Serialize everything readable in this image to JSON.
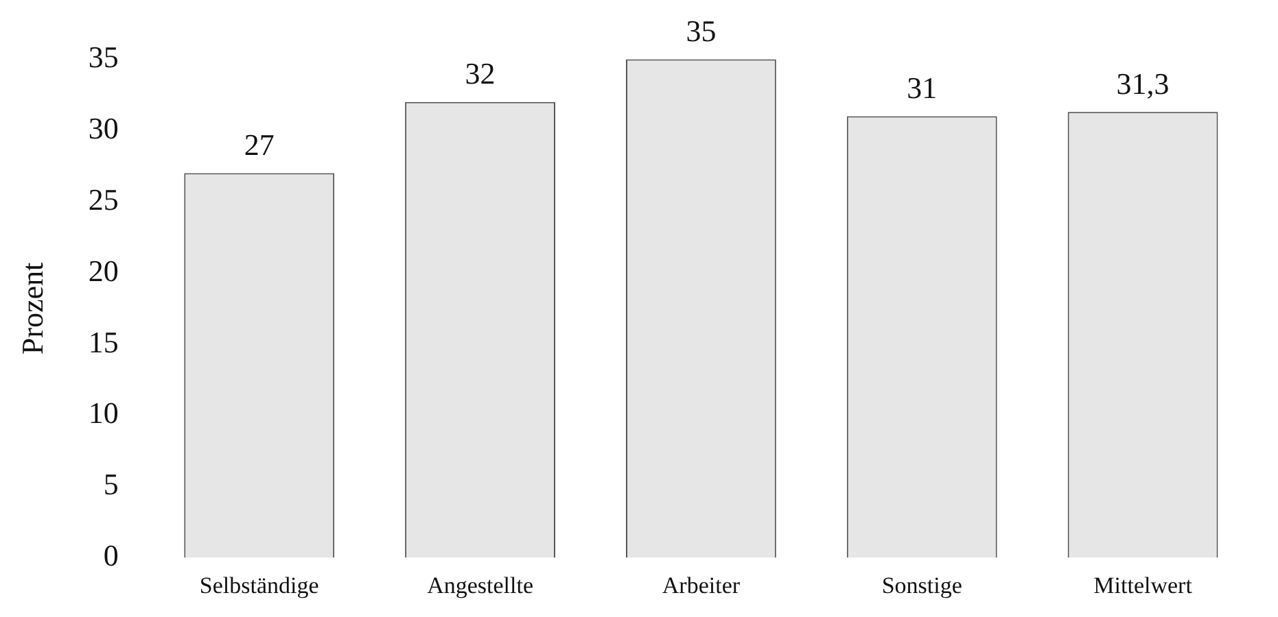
{
  "chart_data": {
    "type": "bar",
    "ylabel": "Prozent",
    "categories": [
      "Selbständige",
      "Angestellte",
      "Arbeiter",
      "Sonstige",
      "Mittelwert"
    ],
    "values": [
      27,
      32,
      35,
      31,
      31.3
    ],
    "value_labels": [
      "27",
      "32",
      "35",
      "31",
      "31,3"
    ],
    "color": "#e6e6e6",
    "ylim": [
      0,
      35
    ],
    "yticks": [
      0,
      5,
      10,
      15,
      20,
      25,
      30,
      35
    ],
    "grid": false,
    "legend": false
  }
}
